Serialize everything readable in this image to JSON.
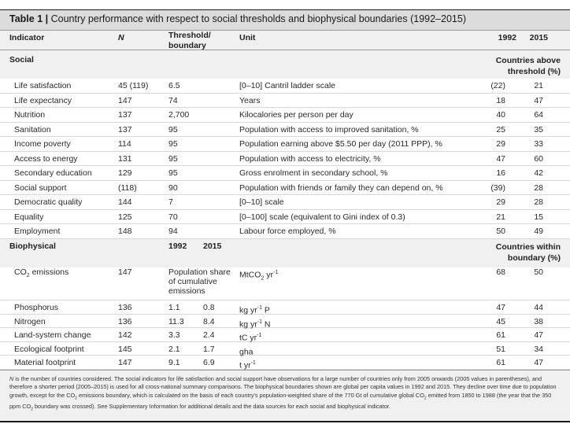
{
  "table": {
    "label": "Table 1 |",
    "title": " Country performance with respect to social thresholds and biophysical boundaries (1992–2015)"
  },
  "columns": {
    "indicator": "Indicator",
    "n": "N",
    "threshold_line1": "Threshold/",
    "threshold_line2": "boundary",
    "unit": "Unit",
    "y1992": "1992",
    "y2015": "2015"
  },
  "social": {
    "section": "Social",
    "above_line1": "Countries above",
    "above_line2": "threshold (%)",
    "rows": [
      {
        "indicator": "Life satisfaction",
        "n": "45 (119)",
        "threshold": "6.5",
        "unit": "[0–10] Cantril ladder scale",
        "v1992": "(22)",
        "v2015": "21"
      },
      {
        "indicator": "Life expectancy",
        "n": "147",
        "threshold": "74",
        "unit": "Years",
        "v1992": "18",
        "v2015": "47"
      },
      {
        "indicator": "Nutrition",
        "n": "137",
        "threshold": "2,700",
        "unit": "Kilocalories per person per day",
        "v1992": "40",
        "v2015": "64"
      },
      {
        "indicator": "Sanitation",
        "n": "137",
        "threshold": "95",
        "unit": "Population with access to improved sanitation, %",
        "v1992": "25",
        "v2015": "35"
      },
      {
        "indicator": "Income poverty",
        "n": "114",
        "threshold": "95",
        "unit": "Population earning above $5.50 per day (2011 PPP), %",
        "v1992": "29",
        "v2015": "33"
      },
      {
        "indicator": "Access to energy",
        "n": "131",
        "threshold": "95",
        "unit": "Population with access to electricity, %",
        "v1992": "47",
        "v2015": "60"
      },
      {
        "indicator": "Secondary education",
        "n": "129",
        "threshold": "95",
        "unit": "Gross enrolment in secondary school, %",
        "v1992": "16",
        "v2015": "42"
      },
      {
        "indicator": "Social support",
        "n": "(118)",
        "threshold": "90",
        "unit": "Population with friends or family they can depend on, %",
        "v1992": "(39)",
        "v2015": "28"
      },
      {
        "indicator": "Democratic quality",
        "n": "144",
        "threshold": "7",
        "unit": "[0–10] scale",
        "v1992": "29",
        "v2015": "28"
      },
      {
        "indicator": "Equality",
        "n": "125",
        "threshold": "70",
        "unit": "[0–100] scale (equivalent to Gini index of 0.3)",
        "v1992": "21",
        "v2015": "15"
      },
      {
        "indicator": "Employment",
        "n": "148",
        "threshold": "94",
        "unit": "Labour force employed, %",
        "v1992": "50",
        "v2015": "49"
      }
    ]
  },
  "biophysical": {
    "section": "Biophysical",
    "b1992": "1992",
    "b2015": "2015",
    "within_line1": "Countries within",
    "within_line2": "boundary (%)",
    "co2": {
      "indicator_pre": "CO",
      "indicator_sub": "2",
      "indicator_post": " emissions",
      "n": "147",
      "threshold": "Population share of cumulative emissions",
      "unit_pre": "MtCO",
      "unit_sub": "2",
      "unit_mid": " yr",
      "unit_sup": "-1",
      "v1992": "68",
      "v2015": "50"
    },
    "rows": [
      {
        "indicator": "Phosphorus",
        "n": "136",
        "b1992": "1.1",
        "b2015": "0.8",
        "unit_pre": "kg yr",
        "unit_sup": "-1",
        "unit_post": " P",
        "v1992": "47",
        "v2015": "44"
      },
      {
        "indicator": "Nitrogen",
        "n": "136",
        "b1992": "11.3",
        "b2015": "8.4",
        "unit_pre": "kg yr",
        "unit_sup": "-1",
        "unit_post": " N",
        "v1992": "45",
        "v2015": "38"
      },
      {
        "indicator": "Land-system change",
        "n": "142",
        "b1992": "3.3",
        "b2015": "2.4",
        "unit_pre": "tC yr",
        "unit_sup": "-1",
        "unit_post": "",
        "v1992": "61",
        "v2015": "47"
      },
      {
        "indicator": "Ecological footprint",
        "n": "145",
        "b1992": "2.1",
        "b2015": "1.7",
        "unit_pre": "gha",
        "unit_sup": "",
        "unit_post": "",
        "v1992": "51",
        "v2015": "34"
      },
      {
        "indicator": "Material footprint",
        "n": "147",
        "b1992": "9.1",
        "b2015": "6.9",
        "unit_pre": "t yr",
        "unit_sup": "-1",
        "unit_post": "",
        "v1992": "61",
        "v2015": "47"
      }
    ]
  },
  "footnote": {
    "n_italic": "N",
    "part1": " is the number of countries considered. The social indicators for life satisfaction and social support have observations for a large number of countries only from 2005 onwards (2005 values in parentheses), and therefore a shorter period (2005–2015) is used for all cross-national summary comparisons. The biophysical boundaries shown are global per capita values in 1992 and 2015. They decline over time due to population growth, except for the CO",
    "sub1": "2",
    "part2": " emissions boundary, which is calculated on the basis of each country's population-weighted share of the 770 Gt of cumulative global CO",
    "sub2": "2",
    "part3": " emitted from 1850 to 1988 (the year that the 350 ppm CO",
    "sub3": "2",
    "part4": " boundary was crossed). See Supplementary Information for additional details and the data sources for each social and biophysical indicator."
  }
}
